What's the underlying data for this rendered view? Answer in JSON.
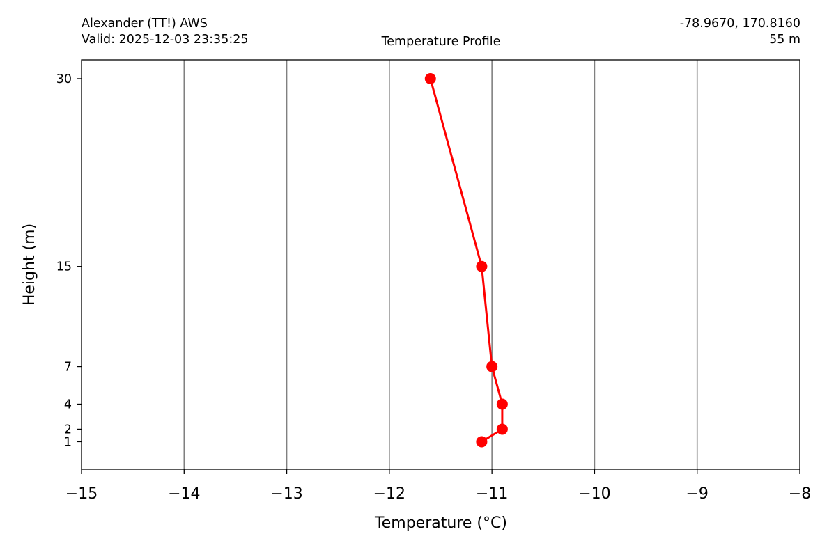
{
  "header": {
    "station": "Alexander (TT!) AWS",
    "valid": "Valid: 2025-12-03 23:35:25",
    "title": "Temperature Profile",
    "coords": "-78.9670, 170.8160",
    "elevation": "55 m"
  },
  "chart_data": {
    "type": "line",
    "title": "Temperature Profile",
    "xlabel": "Temperature (°C)",
    "ylabel": "Height (m)",
    "xlim": [
      -15,
      -8
    ],
    "ylim": [
      -1.2,
      31.5
    ],
    "grid": "vertical",
    "xticks": [
      -15,
      -14,
      -13,
      -12,
      -11,
      -10,
      -9,
      -8
    ],
    "xtick_labels": [
      "−15",
      "−14",
      "−13",
      "−12",
      "−11",
      "−10",
      "−9",
      "−8"
    ],
    "yticks": [
      1,
      2,
      4,
      7,
      15,
      30
    ],
    "ytick_labels": [
      "1",
      "2",
      "4",
      "7",
      "15",
      "30"
    ],
    "series": [
      {
        "color": "#ff0000",
        "marker": "circle",
        "points": [
          {
            "x": -11.1,
            "y": 1
          },
          {
            "x": -10.9,
            "y": 2
          },
          {
            "x": -10.9,
            "y": 4
          },
          {
            "x": -11.0,
            "y": 7
          },
          {
            "x": -11.1,
            "y": 15
          },
          {
            "x": -11.6,
            "y": 30
          }
        ]
      }
    ]
  }
}
